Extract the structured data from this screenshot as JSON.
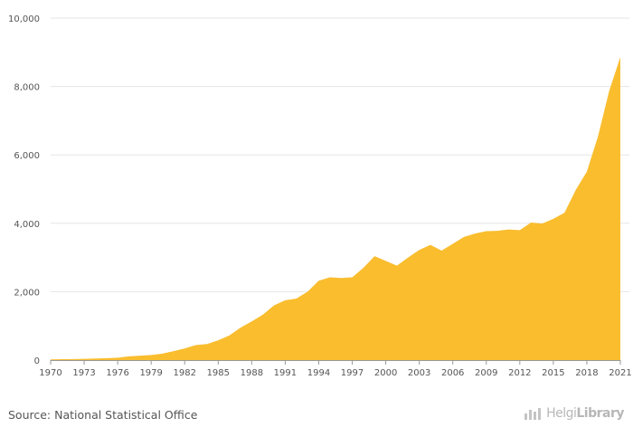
{
  "chart_data": {
    "type": "area",
    "title": "",
    "xlabel": "",
    "ylabel": "",
    "x": [
      1970,
      1971,
      1972,
      1973,
      1974,
      1975,
      1976,
      1977,
      1978,
      1979,
      1980,
      1981,
      1982,
      1983,
      1984,
      1985,
      1986,
      1987,
      1988,
      1989,
      1990,
      1991,
      1992,
      1993,
      1994,
      1995,
      1996,
      1997,
      1998,
      1999,
      2000,
      2001,
      2002,
      2003,
      2004,
      2005,
      2006,
      2007,
      2008,
      2009,
      2010,
      2011,
      2012,
      2013,
      2014,
      2015,
      2016,
      2017,
      2018,
      2019,
      2020,
      2021
    ],
    "values": [
      20,
      25,
      30,
      35,
      45,
      55,
      70,
      110,
      130,
      150,
      190,
      260,
      340,
      440,
      470,
      580,
      720,
      950,
      1130,
      1330,
      1600,
      1750,
      1800,
      2000,
      2320,
      2420,
      2400,
      2420,
      2700,
      3040,
      2900,
      2760,
      3000,
      3220,
      3370,
      3200,
      3400,
      3600,
      3700,
      3770,
      3780,
      3820,
      3800,
      4020,
      3990,
      4130,
      4310,
      4970,
      5510,
      6540,
      7870,
      8860
    ],
    "ylim": [
      0,
      10000
    ],
    "yticks": [
      "0",
      "2,000",
      "4,000",
      "6,000",
      "8,000",
      "10,000"
    ],
    "xticks": [
      "1970",
      "1973",
      "1976",
      "1979",
      "1982",
      "1985",
      "1988",
      "1991",
      "1994",
      "1997",
      "2000",
      "2003",
      "2006",
      "2009",
      "2012",
      "2015",
      "2018",
      "2021"
    ],
    "grid": true,
    "colors": {
      "fill": "#f9bd2e",
      "grid": "#e6e6e6",
      "axis": "#999999",
      "text": "#555555"
    }
  },
  "footer": {
    "source": "Source: National Statistical Office",
    "logo_light": "Helgi",
    "logo_bold": "Library",
    "logo_icon": "bar-chart-logo-icon"
  }
}
